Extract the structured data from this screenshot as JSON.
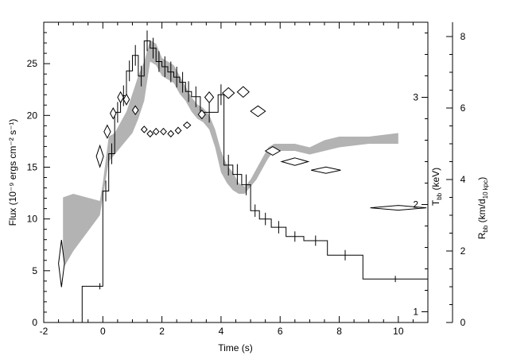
{
  "chart_data": {
    "type": "line",
    "xlabel": "Time (s)",
    "ylabel_left": "Flux (10⁻⁹ ergs cm⁻² s⁻¹)",
    "ylabel_right_T": "T",
    "ylabel_right_T_sub": "bb",
    "ylabel_right_T_unit": " (keV)",
    "ylabel_right_R": "R",
    "ylabel_right_R_sub": "bb",
    "ylabel_right_R_unit_pre": " (km/d",
    "ylabel_right_R_unit_sub": "10 kpc",
    "ylabel_right_R_unit_post": ")",
    "xlim": [
      -2,
      11
    ],
    "ylim_flux": [
      0,
      29
    ],
    "ylim_T": [
      0.9,
      3.7
    ],
    "ylim_R": [
      0,
      8.4
    ],
    "x_ticks": [
      "-2",
      "0",
      "2",
      "4",
      "6",
      "8",
      "10"
    ],
    "flux_ticks": [
      "0",
      "5",
      "10",
      "15",
      "20",
      "25"
    ],
    "T_ticks": [
      "1",
      "2",
      "3"
    ],
    "R_ticks": [
      "0",
      "2",
      "4",
      "6",
      "8"
    ],
    "colors": {
      "band": "#b3b3b3",
      "line": "#000000"
    },
    "flux_histogram": [
      {
        "x0": -1.4,
        "x1": -0.7,
        "y": 0.0
      },
      {
        "x0": -0.7,
        "x1": 0.0,
        "y": 3.5
      },
      {
        "x0": 0.0,
        "x1": 0.2,
        "y": 12.7
      },
      {
        "x0": 0.2,
        "x1": 0.4,
        "y": 16.3
      },
      {
        "x0": 0.4,
        "x1": 0.6,
        "y": 20.3
      },
      {
        "x0": 0.6,
        "x1": 0.8,
        "y": 21.9
      },
      {
        "x0": 0.8,
        "x1": 1.0,
        "y": 24.3
      },
      {
        "x0": 1.0,
        "x1": 1.2,
        "y": 25.8
      },
      {
        "x0": 1.2,
        "x1": 1.4,
        "y": 23.8
      },
      {
        "x0": 1.4,
        "x1": 1.6,
        "y": 27.2
      },
      {
        "x0": 1.6,
        "x1": 1.8,
        "y": 26.5
      },
      {
        "x0": 1.8,
        "x1": 2.0,
        "y": 25.2
      },
      {
        "x0": 2.0,
        "x1": 2.2,
        "y": 24.7
      },
      {
        "x0": 2.2,
        "x1": 2.4,
        "y": 24.2
      },
      {
        "x0": 2.4,
        "x1": 2.6,
        "y": 23.7
      },
      {
        "x0": 2.6,
        "x1": 2.8,
        "y": 23.2
      },
      {
        "x0": 2.8,
        "x1": 3.0,
        "y": 22.3
      },
      {
        "x0": 3.0,
        "x1": 3.3,
        "y": 21.8
      },
      {
        "x0": 3.3,
        "x1": 3.9,
        "y": 20.3
      },
      {
        "x0": 3.9,
        "x1": 4.1,
        "y": 22.0
      },
      {
        "x0": 4.1,
        "x1": 4.4,
        "y": 15.2
      },
      {
        "x0": 4.4,
        "x1": 4.7,
        "y": 14.3
      },
      {
        "x0": 4.7,
        "x1": 5.0,
        "y": 13.3
      },
      {
        "x0": 5.0,
        "x1": 5.3,
        "y": 10.8
      },
      {
        "x0": 5.3,
        "x1": 5.7,
        "y": 10.0
      },
      {
        "x0": 5.7,
        "x1": 6.2,
        "y": 9.2
      },
      {
        "x0": 6.2,
        "x1": 6.8,
        "y": 8.3
      },
      {
        "x0": 6.8,
        "x1": 7.6,
        "y": 7.9
      },
      {
        "x0": 7.6,
        "x1": 8.8,
        "y": 6.5
      },
      {
        "x0": 8.8,
        "x1": 11.0,
        "y": 4.2
      }
    ],
    "flux_errorbars": [
      {
        "x": -0.1,
        "y": 3.5,
        "err": 0.3
      },
      {
        "x": 0.1,
        "y": 12.7,
        "err": 1.0
      },
      {
        "x": 0.3,
        "y": 16.3,
        "err": 1.0
      },
      {
        "x": 0.5,
        "y": 20.3,
        "err": 1.0
      },
      {
        "x": 0.7,
        "y": 21.9,
        "err": 1.0
      },
      {
        "x": 0.9,
        "y": 24.3,
        "err": 1.0
      },
      {
        "x": 1.1,
        "y": 25.8,
        "err": 1.0
      },
      {
        "x": 1.3,
        "y": 23.8,
        "err": 1.0
      },
      {
        "x": 1.5,
        "y": 27.2,
        "err": 1.0
      },
      {
        "x": 1.7,
        "y": 26.5,
        "err": 1.0
      },
      {
        "x": 1.9,
        "y": 25.2,
        "err": 1.0
      },
      {
        "x": 2.1,
        "y": 24.7,
        "err": 1.0
      },
      {
        "x": 2.3,
        "y": 24.2,
        "err": 1.0
      },
      {
        "x": 2.5,
        "y": 23.7,
        "err": 1.0
      },
      {
        "x": 2.7,
        "y": 23.2,
        "err": 1.0
      },
      {
        "x": 2.9,
        "y": 22.3,
        "err": 1.0
      },
      {
        "x": 3.15,
        "y": 21.8,
        "err": 1.0
      },
      {
        "x": 3.6,
        "y": 20.3,
        "err": 1.0
      },
      {
        "x": 4.0,
        "y": 22.0,
        "err": 1.0
      },
      {
        "x": 4.25,
        "y": 15.2,
        "err": 1.0
      },
      {
        "x": 4.55,
        "y": 14.3,
        "err": 1.0
      },
      {
        "x": 4.85,
        "y": 13.3,
        "err": 1.0
      },
      {
        "x": 5.15,
        "y": 10.8,
        "err": 0.6
      },
      {
        "x": 5.5,
        "y": 10.0,
        "err": 0.6
      },
      {
        "x": 5.95,
        "y": 9.2,
        "err": 0.6
      },
      {
        "x": 6.5,
        "y": 8.3,
        "err": 0.5
      },
      {
        "x": 7.2,
        "y": 7.9,
        "err": 0.5
      },
      {
        "x": 8.2,
        "y": 6.5,
        "err": 0.5
      },
      {
        "x": 9.9,
        "y": 4.2,
        "err": 0.3
      }
    ],
    "temperature_diamonds": [
      {
        "t": -1.4,
        "T": 1.45,
        "dt": 0.1,
        "dT": 0.22
      },
      {
        "t": -0.1,
        "T": 2.45,
        "dt": 0.12,
        "dT": 0.1
      },
      {
        "t": 0.15,
        "T": 2.68,
        "dt": 0.11,
        "dT": 0.06
      },
      {
        "t": 0.35,
        "T": 2.85,
        "dt": 0.1,
        "dT": 0.05
      },
      {
        "t": 0.6,
        "T": 3.0,
        "dt": 0.1,
        "dT": 0.05
      },
      {
        "t": 0.8,
        "T": 2.98,
        "dt": 0.1,
        "dT": 0.05
      },
      {
        "t": 1.1,
        "T": 2.88,
        "dt": 0.1,
        "dT": 0.04
      },
      {
        "t": 1.4,
        "T": 2.7,
        "dt": 0.1,
        "dT": 0.03
      },
      {
        "t": 1.6,
        "T": 2.66,
        "dt": 0.1,
        "dT": 0.03
      },
      {
        "t": 1.8,
        "T": 2.68,
        "dt": 0.1,
        "dT": 0.03
      },
      {
        "t": 2.05,
        "T": 2.68,
        "dt": 0.1,
        "dT": 0.03
      },
      {
        "t": 2.3,
        "T": 2.66,
        "dt": 0.1,
        "dT": 0.03
      },
      {
        "t": 2.55,
        "T": 2.69,
        "dt": 0.1,
        "dT": 0.03
      },
      {
        "t": 2.85,
        "T": 2.74,
        "dt": 0.12,
        "dT": 0.03
      },
      {
        "t": 3.35,
        "T": 2.84,
        "dt": 0.12,
        "dT": 0.04
      },
      {
        "t": 3.6,
        "T": 3.0,
        "dt": 0.15,
        "dT": 0.05
      },
      {
        "t": 4.25,
        "T": 3.04,
        "dt": 0.2,
        "dT": 0.05
      },
      {
        "t": 4.75,
        "T": 3.05,
        "dt": 0.2,
        "dT": 0.05
      },
      {
        "t": 5.25,
        "T": 2.87,
        "dt": 0.25,
        "dT": 0.05
      },
      {
        "t": 5.75,
        "T": 2.5,
        "dt": 0.25,
        "dT": 0.04
      },
      {
        "t": 6.5,
        "T": 2.4,
        "dt": 0.45,
        "dT": 0.035
      },
      {
        "t": 7.55,
        "T": 2.32,
        "dt": 0.5,
        "dT": 0.03
      },
      {
        "t": 10.0,
        "T": 1.97,
        "dt": 0.95,
        "dT": 0.02
      }
    ],
    "radius_band": {
      "x": [
        -1.35,
        -1.0,
        -0.1,
        0.0,
        0.2,
        0.4,
        0.6,
        0.8,
        1.0,
        1.2,
        1.4,
        1.6,
        1.8,
        2.0,
        2.2,
        2.4,
        2.6,
        2.8,
        3.0,
        3.2,
        3.4,
        3.6,
        3.8,
        4.0,
        4.2,
        4.4,
        4.6,
        4.8,
        5.0,
        5.2,
        5.4,
        5.6,
        5.8,
        6.0,
        6.5,
        7.0,
        7.5,
        8.0,
        9.0,
        10.0
      ],
      "upper": [
        3.5,
        3.6,
        3.4,
        3.9,
        5.2,
        5.3,
        5.6,
        5.9,
        6.4,
        6.9,
        7.3,
        7.9,
        7.8,
        7.4,
        7.3,
        7.2,
        6.9,
        6.6,
        6.3,
        6.1,
        6.0,
        5.8,
        5.4,
        4.8,
        4.4,
        4.2,
        3.9,
        3.8,
        4.0,
        4.3,
        4.6,
        4.9,
        5.0,
        5.0,
        5.0,
        4.9,
        5.1,
        5.2,
        5.2,
        5.3
      ],
      "lower": [
        1.5,
        2.0,
        3.0,
        3.5,
        4.5,
        4.7,
        4.9,
        5.1,
        5.3,
        5.7,
        6.2,
        7.3,
        7.2,
        6.9,
        6.8,
        6.7,
        6.4,
        6.2,
        5.9,
        5.7,
        5.6,
        5.4,
        4.9,
        4.2,
        3.9,
        3.7,
        3.6,
        3.6,
        3.8,
        4.0,
        4.3,
        4.6,
        4.8,
        4.8,
        4.8,
        4.7,
        4.8,
        4.9,
        5.0,
        5.0
      ]
    }
  }
}
